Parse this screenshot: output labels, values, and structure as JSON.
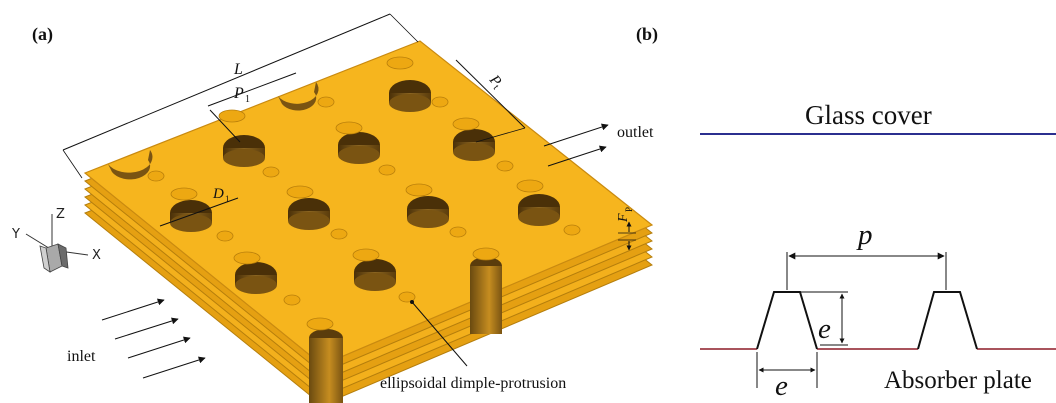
{
  "panel_a": {
    "label": "(a)",
    "dims": {
      "length": "L",
      "pitch_x": "P",
      "pitch_x_sub": "1",
      "pitch_y": "P",
      "pitch_y_sub": "t",
      "diameter": "D",
      "diameter_sub": "1",
      "fin_pitch": "F",
      "fin_pitch_sub": "P"
    },
    "outlet_label": "outlet",
    "inlet_label": "inlet",
    "feature_label": "ellipsoidal dimple-protrusion",
    "axes": {
      "x": "X",
      "y": "Y",
      "z": "Z"
    },
    "colors": {
      "plate": "#F6B51E",
      "plate_edge": "#C98A10",
      "dimple": "#6B4A16",
      "protrusion": "#EDA812"
    }
  },
  "panel_b": {
    "label": "(b)",
    "glass_label": "Glass cover",
    "absorber_label": "Absorber plate",
    "pitch_symbol": "p",
    "height_symbol": "e",
    "width_symbol": "e",
    "colors": {
      "glass_line": "#2B2F8F",
      "absorber_line": "#A9535C"
    }
  }
}
